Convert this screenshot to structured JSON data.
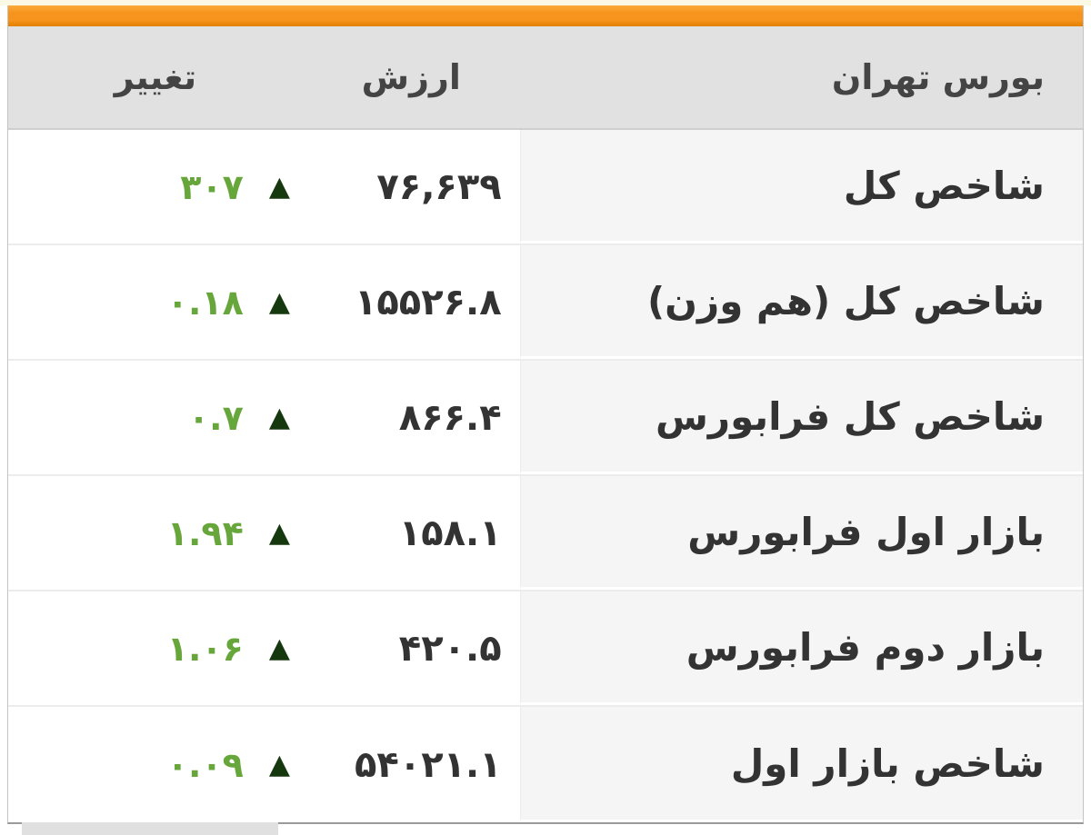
{
  "colors": {
    "accent": "#f7941d",
    "green": "#67a63b",
    "triangle": "#16380f",
    "header-bg": "#e1e1e1",
    "label-bg": "#f5f5f5",
    "text": "#333333",
    "border": "#c4c4c4"
  },
  "glyphs": {
    "up_arrow": "▲"
  },
  "widget": {
    "header": {
      "market": "بورس تهران",
      "value": "ارزش",
      "change": "تغییر"
    },
    "rows": [
      {
        "label": "شاخص کل",
        "value": "۷۶,۶۳۹",
        "change": "۳۰۷",
        "direction": "up"
      },
      {
        "label": "شاخص کل (هم وزن)",
        "value": "۱۵۵۲۶.۸",
        "change": "۰.۱۸",
        "direction": "up"
      },
      {
        "label": "شاخص کل فرابورس",
        "value": "۸۶۶.۴",
        "change": "۰.۷",
        "direction": "up"
      },
      {
        "label": "بازار اول فرابورس",
        "value": "۱۵۸.۱",
        "change": "۱.۹۴",
        "direction": "up"
      },
      {
        "label": "بازار دوم فرابورس",
        "value": "۴۲۰.۵",
        "change": "۱.۰۶",
        "direction": "up"
      },
      {
        "label": "شاخص بازار اول",
        "value": "۵۴۰۲۱.۱",
        "change": "۰.۰۹",
        "direction": "up"
      }
    ]
  },
  "chart_data": {
    "type": "table",
    "title": "بورس تهران",
    "columns": [
      "بورس تهران",
      "ارزش",
      "تغییر"
    ],
    "rows": [
      {
        "name": "شاخص کل",
        "value": 76639,
        "change": 307,
        "direction": "up"
      },
      {
        "name": "شاخص کل (هم وزن)",
        "value": 15526.8,
        "change": 0.18,
        "direction": "up"
      },
      {
        "name": "شاخص کل فرابورس",
        "value": 866.4,
        "change": 0.7,
        "direction": "up"
      },
      {
        "name": "بازار اول فرابورس",
        "value": 158.1,
        "change": 1.94,
        "direction": "up"
      },
      {
        "name": "بازار دوم فرابورس",
        "value": 420.5,
        "change": 1.06,
        "direction": "up"
      },
      {
        "name": "شاخص بازار اول",
        "value": 54021.1,
        "change": 0.09,
        "direction": "up"
      }
    ]
  }
}
